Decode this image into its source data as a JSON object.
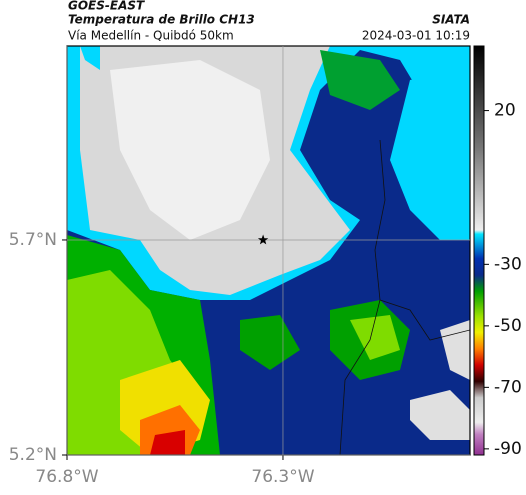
{
  "header": {
    "source": "GOES-EAST",
    "title": "Temperatura de Brillo CH13",
    "agency": "SIATA",
    "subtitle": "Vía Medellín - Quibdó 50km",
    "datetime": "2024-03-01 10:19"
  },
  "map": {
    "xlim": [
      -76.8,
      -75.867
    ],
    "ylim": [
      5.2,
      6.151
    ],
    "xticks": [
      {
        "value": -76.8,
        "label": "76.8°W"
      },
      {
        "value": -76.3,
        "label": "76.3°W"
      }
    ],
    "yticks": [
      {
        "value": 5.2,
        "label": "5.2°N"
      },
      {
        "value": 5.7,
        "label": "5.7°N"
      }
    ],
    "marker": {
      "lon": -76.346,
      "lat": 5.7
    }
  },
  "colorbar": {
    "lim": [
      -92,
      41
    ],
    "ticks": [
      20,
      -30,
      -50,
      -70,
      -90
    ]
  }
}
